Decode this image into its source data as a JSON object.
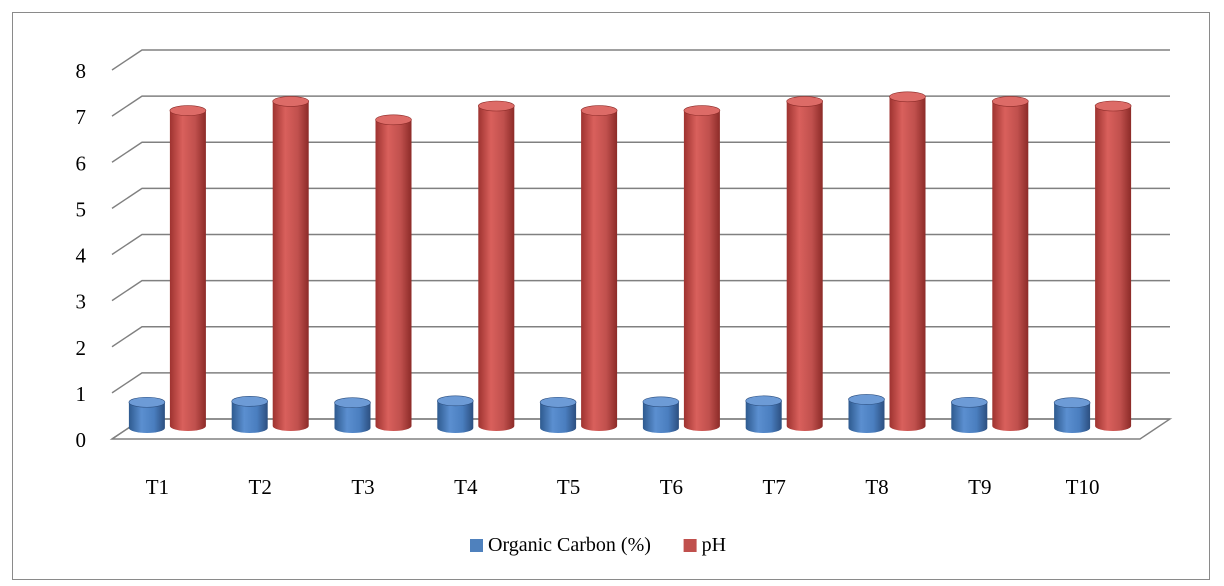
{
  "chart_data": {
    "type": "bar",
    "style": "3d-cylinder",
    "categories": [
      "T1",
      "T2",
      "T3",
      "T4",
      "T5",
      "T6",
      "T7",
      "T8",
      "T9",
      "T10"
    ],
    "series": [
      {
        "name": "Organic Carbon (%)",
        "color": "#4f81bd",
        "values": [
          0.56,
          0.58,
          0.55,
          0.59,
          0.56,
          0.57,
          0.59,
          0.62,
          0.56,
          0.55
        ]
      },
      {
        "name": "pH",
        "color": "#c0504d",
        "values": [
          6.9,
          7.1,
          6.7,
          7.0,
          6.9,
          6.9,
          7.1,
          7.2,
          7.1,
          7.0
        ]
      }
    ],
    "yticks": [
      "0",
      "1",
      "2",
      "3",
      "4",
      "5",
      "6",
      "7",
      "8"
    ],
    "ylim": [
      0,
      8
    ],
    "grid": true,
    "legend_position": "bottom",
    "title": "",
    "xlabel": "",
    "ylabel": ""
  }
}
